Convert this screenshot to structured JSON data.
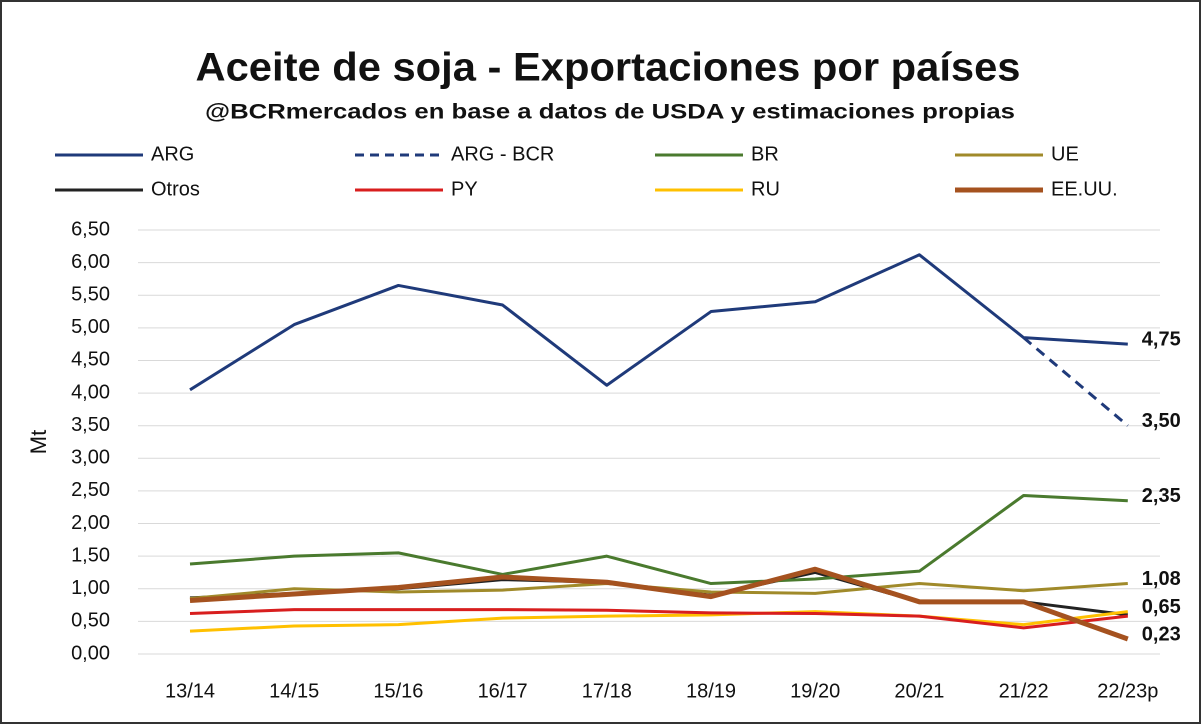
{
  "chart_data": {
    "type": "line",
    "title": "Aceite de soja - Exportaciones por países",
    "subtitle": "@BCRmercados  en base a datos de USDA y estimaciones  propias",
    "y_label": "Mt",
    "categories": [
      "13/14",
      "14/15",
      "15/16",
      "16/17",
      "17/18",
      "18/19",
      "19/20",
      "20/21",
      "21/22",
      "22/23p"
    ],
    "ylim": [
      0,
      6.5
    ],
    "yticks": [
      {
        "value": 0,
        "label": "0,00"
      },
      {
        "value": 0.5,
        "label": "0,50"
      },
      {
        "value": 1,
        "label": "1,00"
      },
      {
        "value": 1.5,
        "label": "1,50"
      },
      {
        "value": 2,
        "label": "2,00"
      },
      {
        "value": 2.5,
        "label": "2,50"
      },
      {
        "value": 3,
        "label": "3,00"
      },
      {
        "value": 3.5,
        "label": "3,50"
      },
      {
        "value": 4,
        "label": "4,00"
      },
      {
        "value": 4.5,
        "label": "4,50"
      },
      {
        "value": 5,
        "label": "5,00"
      },
      {
        "value": 5.5,
        "label": "5,50"
      },
      {
        "value": 6,
        "label": "6,00"
      },
      {
        "value": 6.5,
        "label": "6,50"
      }
    ],
    "grid": true,
    "legend": "top",
    "series": [
      {
        "name": "ARG",
        "color": "#1f3a7a",
        "width": 3,
        "values": [
          4.05,
          5.05,
          5.65,
          5.35,
          4.12,
          5.25,
          5.4,
          6.12,
          4.85,
          4.75
        ],
        "value_labels": [
          null,
          null,
          null,
          null,
          null,
          null,
          null,
          null,
          null,
          "4,75"
        ]
      },
      {
        "name": "ARG - BCR",
        "color": "#1f3a7a",
        "width": 3,
        "dash": true,
        "values": [
          null,
          null,
          null,
          null,
          null,
          null,
          null,
          null,
          4.85,
          3.5
        ],
        "value_labels": [
          null,
          null,
          null,
          null,
          null,
          null,
          null,
          null,
          null,
          "3,50"
        ]
      },
      {
        "name": "BR",
        "color": "#4a7a2e",
        "width": 3,
        "values": [
          1.38,
          1.5,
          1.55,
          1.22,
          1.5,
          1.08,
          1.15,
          1.27,
          2.43,
          2.35
        ],
        "value_labels": [
          null,
          null,
          null,
          null,
          null,
          null,
          null,
          null,
          null,
          "2,35"
        ]
      },
      {
        "name": "UE",
        "color": "#a08a2a",
        "width": 3,
        "values": [
          0.85,
          1.0,
          0.95,
          0.98,
          1.08,
          0.95,
          0.93,
          1.08,
          0.97,
          1.08
        ],
        "value_labels": [
          null,
          null,
          null,
          null,
          null,
          null,
          null,
          null,
          null,
          "1,08"
        ]
      },
      {
        "name": "Otros",
        "color": "#222222",
        "width": 3,
        "values": [
          0.86,
          0.93,
          1.0,
          1.14,
          1.1,
          0.9,
          1.25,
          0.8,
          0.8,
          0.6
        ]
      },
      {
        "name": "PY",
        "color": "#d81e1e",
        "width": 3,
        "values": [
          0.62,
          0.68,
          0.68,
          0.68,
          0.67,
          0.63,
          0.62,
          0.58,
          0.4,
          0.58
        ]
      },
      {
        "name": "RU",
        "color": "#ffc000",
        "width": 3,
        "values": [
          0.35,
          0.43,
          0.45,
          0.55,
          0.58,
          0.6,
          0.65,
          0.58,
          0.45,
          0.65
        ],
        "value_labels": [
          null,
          null,
          null,
          null,
          null,
          null,
          null,
          null,
          null,
          "0,65"
        ]
      },
      {
        "name": "EE.UU.",
        "color": "#a5521f",
        "width": 5,
        "values": [
          0.82,
          0.92,
          1.02,
          1.18,
          1.1,
          0.88,
          1.3,
          0.8,
          0.8,
          0.23
        ],
        "value_labels": [
          null,
          null,
          null,
          null,
          null,
          null,
          null,
          null,
          null,
          "0,23"
        ]
      }
    ]
  }
}
